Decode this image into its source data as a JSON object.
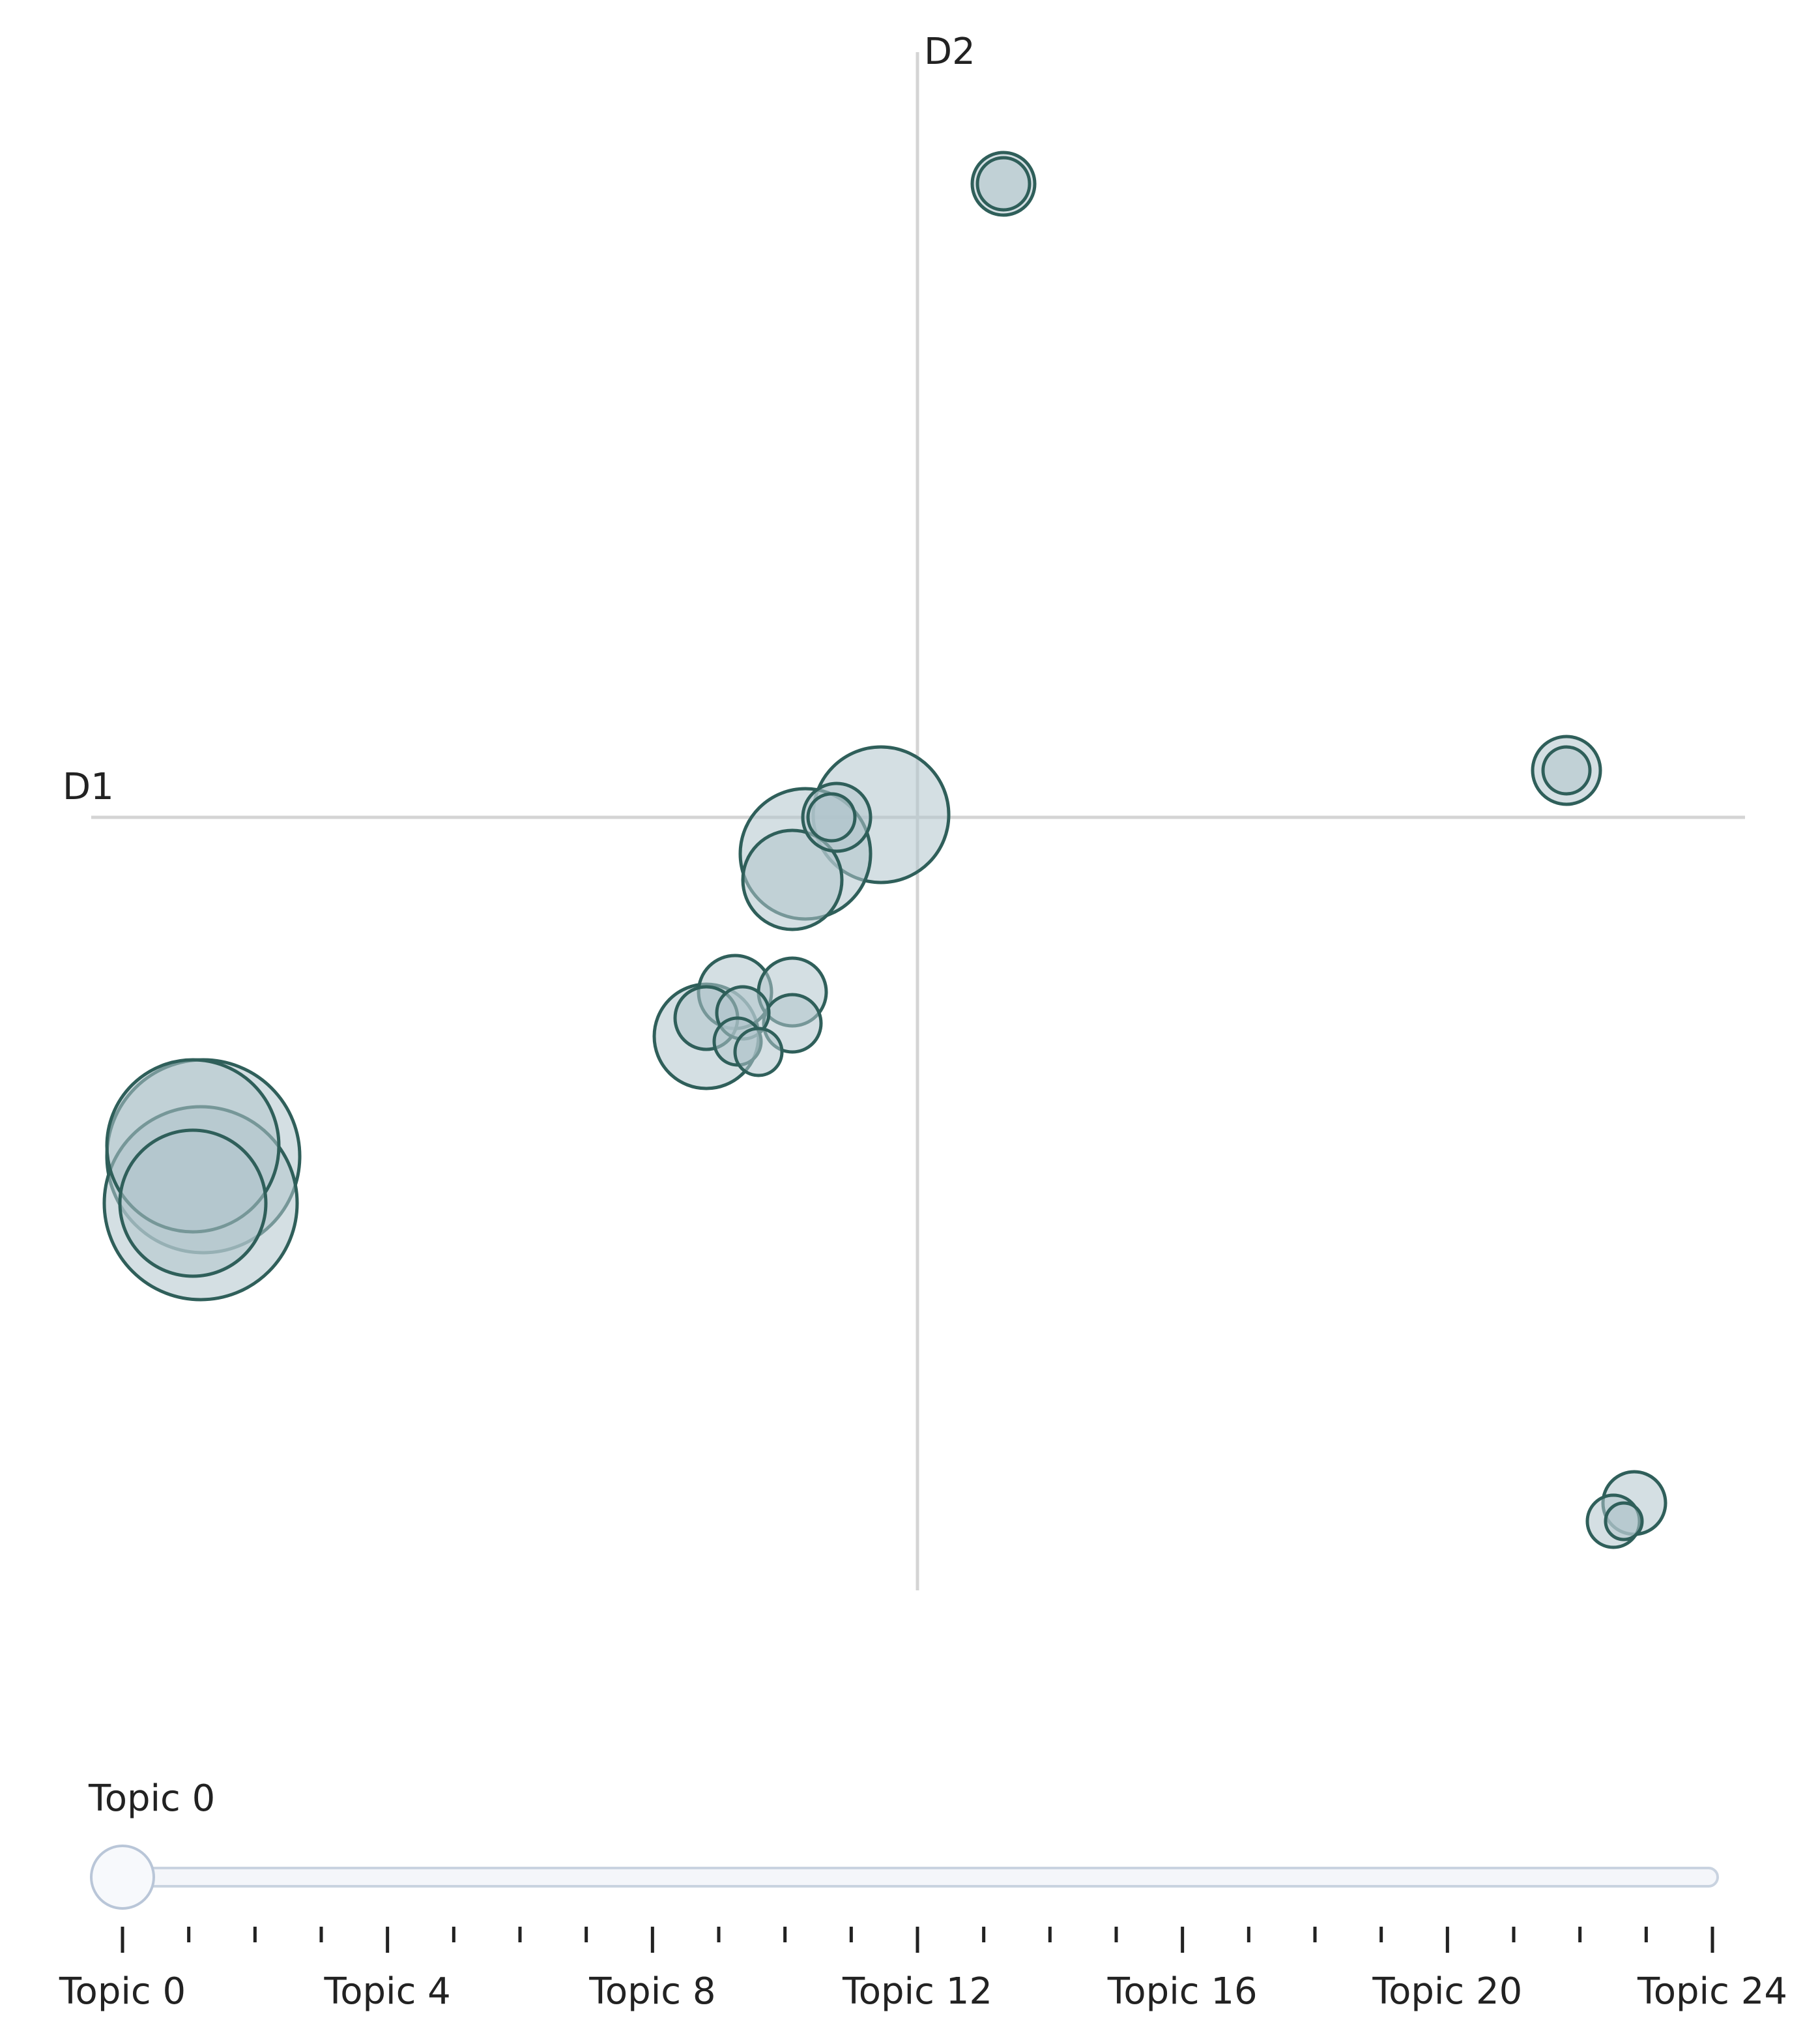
{
  "chart_data": {
    "type": "scatter",
    "title": "",
    "xlabel": "D1",
    "ylabel": "D2",
    "xlim": [
      -31.5,
      31.5
    ],
    "ylim": [
      -29.5,
      29.5
    ],
    "grid": false,
    "bubble_color": "#b0c4cc",
    "bubble_stroke": "#2f5f5a",
    "axis_color": "#d4d4d4",
    "points": [
      {
        "x": -27.4,
        "y": -13.0,
        "size": 3.7
      },
      {
        "x": -27.8,
        "y": -12.6,
        "size": 3.3
      },
      {
        "x": -27.5,
        "y": -14.8,
        "size": 3.7
      },
      {
        "x": -27.8,
        "y": -14.8,
        "size": 2.8
      },
      {
        "x": 3.3,
        "y": 24.3,
        "size": 1.2
      },
      {
        "x": 3.3,
        "y": 24.3,
        "size": 1.0
      },
      {
        "x": -1.4,
        "y": 0.1,
        "size": 2.6
      },
      {
        "x": -4.3,
        "y": -1.4,
        "size": 2.5
      },
      {
        "x": -4.8,
        "y": -2.4,
        "size": 1.9
      },
      {
        "x": -3.1,
        "y": 0.0,
        "size": 1.3
      },
      {
        "x": -3.3,
        "y": 0.0,
        "size": 0.9
      },
      {
        "x": -7.0,
        "y": -6.7,
        "size": 1.4
      },
      {
        "x": -4.8,
        "y": -6.7,
        "size": 1.3
      },
      {
        "x": -8.1,
        "y": -7.7,
        "size": 1.2
      },
      {
        "x": -6.7,
        "y": -7.5,
        "size": 1.0
      },
      {
        "x": -4.8,
        "y": -7.9,
        "size": 1.1
      },
      {
        "x": -8.1,
        "y": -8.4,
        "size": 2.0
      },
      {
        "x": -6.9,
        "y": -8.6,
        "size": 0.9
      },
      {
        "x": -6.1,
        "y": -9.0,
        "size": 0.9
      },
      {
        "x": 24.9,
        "y": 1.8,
        "size": 1.3
      },
      {
        "x": 24.9,
        "y": 1.8,
        "size": 0.9
      },
      {
        "x": 27.5,
        "y": -26.3,
        "size": 1.2
      },
      {
        "x": 26.7,
        "y": -27.0,
        "size": 1.0
      },
      {
        "x": 27.1,
        "y": -27.0,
        "size": 0.7
      }
    ]
  },
  "slider": {
    "current_label": "Topic 0",
    "current_index": 0,
    "min": 0,
    "max": 24,
    "tick_labels": [
      "Topic 0",
      "Topic 4",
      "Topic 8",
      "Topic 12",
      "Topic 16",
      "Topic 20",
      "Topic 24"
    ]
  }
}
